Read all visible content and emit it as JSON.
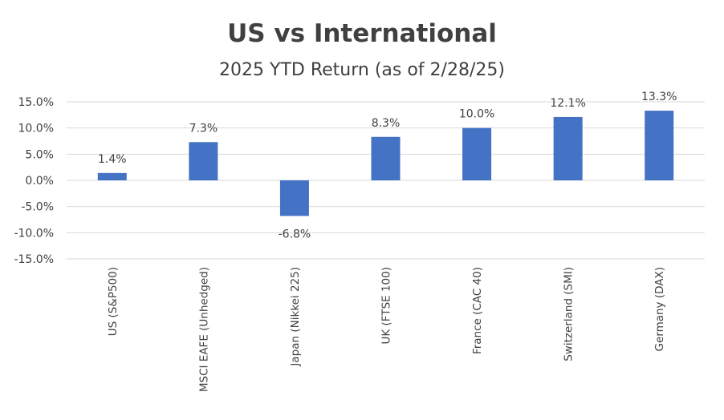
{
  "chart_data": {
    "type": "bar",
    "title": "US vs International",
    "subtitle": "2025 YTD Return (as of 2/28/25)",
    "categories": [
      "US (S&P500)",
      "MSCI EAFE (Unhedged)",
      "Japan (Nikkei 225)",
      "UK (FTSE 100)",
      "France (CAC 40)",
      "Switzerland (SMI)",
      "Germany (DAX)"
    ],
    "values": [
      1.4,
      7.3,
      -6.8,
      8.3,
      10.0,
      12.1,
      13.3
    ],
    "data_labels": [
      "1.4%",
      "7.3%",
      "-6.8%",
      "8.3%",
      "10.0%",
      "12.1%",
      "13.3%"
    ],
    "ylim": [
      -15,
      15
    ],
    "yticks": [
      15,
      10,
      5,
      0,
      -5,
      -10,
      -15
    ],
    "ytick_labels": [
      "15.0%",
      "10.0%",
      "5.0%",
      "0.0%",
      "-5.0%",
      "-10.0%",
      "-15.0%"
    ],
    "grid": true,
    "legend": "none",
    "bar_color": "#4472c4"
  }
}
